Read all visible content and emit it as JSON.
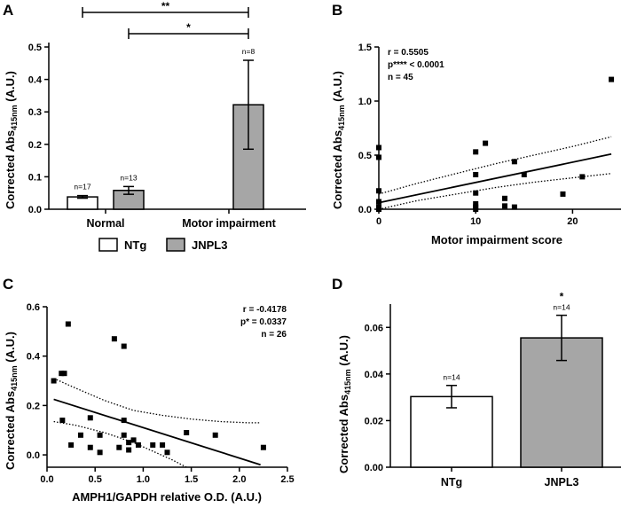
{
  "colors": {
    "ntg": "#ffffff",
    "jnpl3": "#a6a6a6",
    "ink": "#000000"
  },
  "chart_data": [
    {
      "panel": "A",
      "type": "bar",
      "ylabel": "Corrected Abs415nm (A.U.)",
      "ylabel_main": "Corrected Abs",
      "ylabel_sub": "415nm",
      "ylabel_tail": " (A.U.)",
      "ylim": [
        0,
        0.5
      ],
      "yticks": [
        {
          "v": 0,
          "t": "0.0"
        },
        {
          "v": 0.1,
          "t": "0.1"
        },
        {
          "v": 0.2,
          "t": "0.2"
        },
        {
          "v": 0.3,
          "t": "0.3"
        },
        {
          "v": 0.4,
          "t": "0.4"
        },
        {
          "v": 0.5,
          "t": "0.5"
        }
      ],
      "categories": [
        "Normal",
        "Motor impairment"
      ],
      "series": [
        {
          "name": "NTg",
          "values": [
            0.038,
            null
          ],
          "errors": [
            0.004,
            null
          ],
          "n_labels": [
            "n=17",
            null
          ]
        },
        {
          "name": "JNPL3",
          "values": [
            0.058,
            0.322
          ],
          "errors": [
            0.012,
            0.137
          ],
          "n_labels": [
            "n=13",
            "n=8"
          ]
        }
      ],
      "significance": [
        {
          "label": "**",
          "from": "Normal NTg",
          "to": "Motor impairment JNPL3"
        },
        {
          "label": "*",
          "from": "Normal JNPL3",
          "to": "Motor impairment JNPL3"
        }
      ],
      "legend": [
        "NTg",
        "JNPL3"
      ]
    },
    {
      "panel": "B",
      "type": "scatter",
      "xlabel": "Motor impairment score",
      "ylabel": "Corrected Abs415nm (A.U.)",
      "ylabel_main": "Corrected Abs",
      "ylabel_sub": "415nm",
      "ylabel_tail": " (A.U.)",
      "xlim": [
        0,
        25
      ],
      "ylim": [
        0,
        1.5
      ],
      "xticks": [
        {
          "v": 0,
          "t": "0"
        },
        {
          "v": 10,
          "t": "10"
        },
        {
          "v": 20,
          "t": "20"
        }
      ],
      "yticks": [
        {
          "v": 0,
          "t": "0.0"
        },
        {
          "v": 0.5,
          "t": "0.5"
        },
        {
          "v": 1.0,
          "t": "1.0"
        },
        {
          "v": 1.5,
          "t": "1.5"
        }
      ],
      "stats": [
        "r = 0.5505",
        "p**** < 0.0001",
        "n = 45"
      ],
      "points": [
        [
          0,
          0.57
        ],
        [
          0,
          0.48
        ],
        [
          0,
          0.17
        ],
        [
          0,
          0.07
        ],
        [
          0,
          0.02
        ],
        [
          0,
          0.0
        ],
        [
          10,
          0.53
        ],
        [
          10,
          0.32
        ],
        [
          10,
          0.15
        ],
        [
          10,
          0.05
        ],
        [
          10,
          0.02
        ],
        [
          10,
          0.0
        ],
        [
          11,
          0.61
        ],
        [
          13,
          0.1
        ],
        [
          13,
          0.03
        ],
        [
          14,
          0.44
        ],
        [
          14,
          0.02
        ],
        [
          15,
          0.32
        ],
        [
          19,
          0.14
        ],
        [
          21,
          0.3
        ],
        [
          24,
          1.2
        ]
      ],
      "regression": {
        "x": [
          0,
          24
        ],
        "y": [
          0.06,
          0.51
        ]
      },
      "ci_upper": [
        [
          0,
          0.14
        ],
        [
          4,
          0.24
        ],
        [
          8,
          0.33
        ],
        [
          12,
          0.42
        ],
        [
          16,
          0.5
        ],
        [
          20,
          0.58
        ],
        [
          24,
          0.67
        ]
      ],
      "ci_lower": [
        [
          0,
          0.0
        ],
        [
          4,
          0.08
        ],
        [
          8,
          0.14
        ],
        [
          12,
          0.2
        ],
        [
          16,
          0.25
        ],
        [
          20,
          0.29
        ],
        [
          24,
          0.33
        ]
      ]
    },
    {
      "panel": "C",
      "type": "scatter",
      "xlabel": "AMPH1/GAPDH relative O.D. (A.U.)",
      "ylabel": "Corrected Abs415nm (A.U.)",
      "ylabel_main": "Corrected Abs",
      "ylabel_sub": "415nm",
      "ylabel_tail": " (A.U.)",
      "xlim": [
        0,
        2.5
      ],
      "ylim": [
        -0.05,
        0.6
      ],
      "xticks": [
        {
          "v": 0,
          "t": "0.0"
        },
        {
          "v": 0.5,
          "t": "0.5"
        },
        {
          "v": 1.0,
          "t": "1.0"
        },
        {
          "v": 1.5,
          "t": "1.5"
        },
        {
          "v": 2.0,
          "t": "2.0"
        },
        {
          "v": 2.5,
          "t": "2.5"
        }
      ],
      "yticks": [
        {
          "v": 0,
          "t": "0.0"
        },
        {
          "v": 0.2,
          "t": "0.2"
        },
        {
          "v": 0.4,
          "t": "0.4"
        },
        {
          "v": 0.6,
          "t": "0.6"
        }
      ],
      "stats": [
        "r = -0.4178",
        "p* = 0.0337",
        "n = 26"
      ],
      "points": [
        [
          0.07,
          0.3
        ],
        [
          0.15,
          0.33
        ],
        [
          0.18,
          0.33
        ],
        [
          0.16,
          0.14
        ],
        [
          0.22,
          0.53
        ],
        [
          0.25,
          0.04
        ],
        [
          0.35,
          0.08
        ],
        [
          0.45,
          0.15
        ],
        [
          0.45,
          0.03
        ],
        [
          0.55,
          0.08
        ],
        [
          0.55,
          0.01
        ],
        [
          0.7,
          0.47
        ],
        [
          0.8,
          0.44
        ],
        [
          0.8,
          0.14
        ],
        [
          0.75,
          0.03
        ],
        [
          0.8,
          0.08
        ],
        [
          0.85,
          0.05
        ],
        [
          0.85,
          0.02
        ],
        [
          0.9,
          0.06
        ],
        [
          0.95,
          0.04
        ],
        [
          1.1,
          0.04
        ],
        [
          1.2,
          0.04
        ],
        [
          1.25,
          0.01
        ],
        [
          1.45,
          0.09
        ],
        [
          1.75,
          0.08
        ],
        [
          2.25,
          0.03
        ]
      ],
      "regression": {
        "x": [
          0.07,
          2.22
        ],
        "y": [
          0.225,
          -0.04
        ]
      },
      "ci_upper": [
        [
          0.07,
          0.31
        ],
        [
          0.3,
          0.27
        ],
        [
          0.6,
          0.22
        ],
        [
          0.9,
          0.18
        ],
        [
          1.2,
          0.16
        ],
        [
          1.5,
          0.145
        ],
        [
          1.8,
          0.135
        ],
        [
          2.1,
          0.13
        ],
        [
          2.22,
          0.13
        ]
      ],
      "ci_lower": [
        [
          0.07,
          0.135
        ],
        [
          0.3,
          0.12
        ],
        [
          0.6,
          0.09
        ],
        [
          0.9,
          0.05
        ],
        [
          1.1,
          0.015
        ],
        [
          1.3,
          -0.02
        ],
        [
          1.45,
          -0.05
        ]
      ]
    },
    {
      "panel": "D",
      "type": "bar",
      "ylabel": "Corrected Abs415nm (A.U.)",
      "ylabel_main": "Corrected Abs",
      "ylabel_sub": "415nm",
      "ylabel_tail": " (A.U.)",
      "ylim": [
        0,
        0.07
      ],
      "yticks": [
        {
          "v": 0,
          "t": "0.00"
        },
        {
          "v": 0.02,
          "t": "0.02"
        },
        {
          "v": 0.04,
          "t": "0.04"
        },
        {
          "v": 0.06,
          "t": "0.06"
        }
      ],
      "categories": [
        "NTg",
        "JNPL3"
      ],
      "values": [
        0.0303,
        0.0555
      ],
      "errors": [
        0.0048,
        0.0097
      ],
      "n_labels": [
        "n=14",
        "n=14"
      ],
      "significance": [
        "",
        "*"
      ]
    }
  ]
}
